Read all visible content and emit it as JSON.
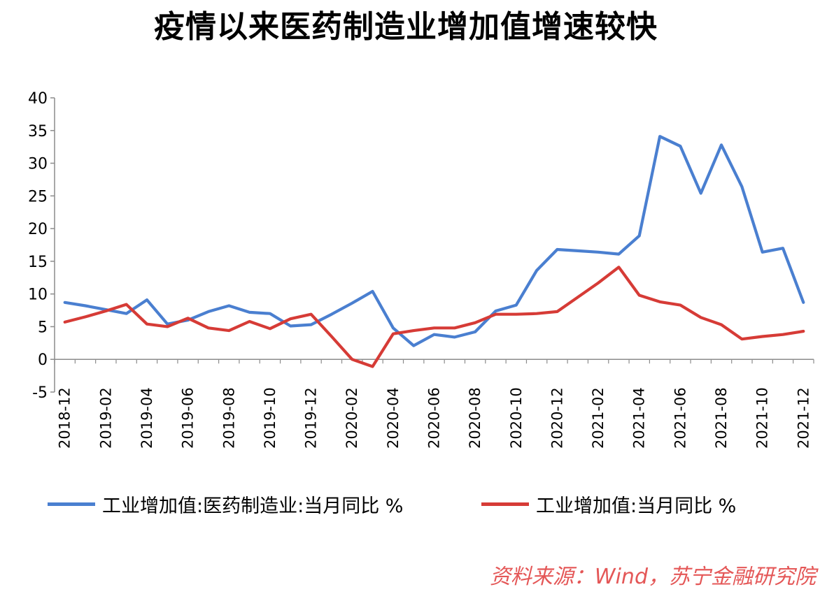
{
  "title": "疫情以来医药制造业增加值增速较快",
  "source": "资料来源：Wind，苏宁金融研究院",
  "colors": {
    "pharma": "#4a7fd0",
    "industry": "#d63b36",
    "axis": "#8c8c8c"
  },
  "chart_data": {
    "type": "line",
    "title": "疫情以来医药制造业增加值增速较快",
    "xlabel": "",
    "ylabel": "",
    "ylim": [
      -5,
      40
    ],
    "yticks": [
      "40",
      "35",
      "30",
      "25",
      "20",
      "15",
      "10",
      "5",
      "0",
      "-5"
    ],
    "xtick_labels": [
      "2018-12",
      "2019-02",
      "2019-04",
      "2019-06",
      "2019-08",
      "2019-10",
      "2019-12",
      "2020-02",
      "2020-04",
      "2020-06",
      "2020-08",
      "2020-10",
      "2020-12",
      "2021-02",
      "2021-04",
      "2021-06",
      "2021-08",
      "2021-10",
      "2021-12"
    ],
    "x": [
      "2018-12",
      "2019-01",
      "2019-02",
      "2019-03",
      "2019-04",
      "2019-05",
      "2019-06",
      "2019-07",
      "2019-08",
      "2019-09",
      "2019-10",
      "2019-11",
      "2019-12",
      "2020-01",
      "2020-02",
      "2020-03",
      "2020-04",
      "2020-05",
      "2020-06",
      "2020-07",
      "2020-08",
      "2020-09",
      "2020-10",
      "2020-11",
      "2020-12",
      "2021-01",
      "2021-02",
      "2021-03",
      "2021-04",
      "2021-05",
      "2021-06",
      "2021-07",
      "2021-08",
      "2021-09",
      "2021-10",
      "2021-11",
      "2021-12"
    ],
    "legend_position": "bottom",
    "grid": false,
    "series": [
      {
        "name": "工业增加值:医药制造业:当月同比 %",
        "color": "#4a7fd0",
        "values": [
          8.7,
          8.2,
          7.6,
          7.0,
          9.1,
          5.4,
          6.0,
          7.3,
          8.2,
          7.2,
          7.0,
          5.1,
          5.3,
          6.9,
          8.6,
          10.4,
          4.8,
          2.1,
          3.8,
          3.4,
          4.2,
          7.4,
          8.3,
          13.6,
          16.8,
          16.6,
          16.4,
          16.1,
          18.9,
          34.1,
          32.6,
          25.4,
          32.8,
          26.4,
          16.4,
          17.0,
          8.7
        ]
      },
      {
        "name": "工业增加值:当月同比 %",
        "color": "#d63b36",
        "values": [
          5.7,
          6.5,
          7.4,
          8.4,
          5.4,
          5.0,
          6.3,
          4.8,
          4.4,
          5.8,
          4.7,
          6.2,
          6.9,
          3.5,
          0.0,
          -1.1,
          3.9,
          4.4,
          4.8,
          4.8,
          5.6,
          6.9,
          6.9,
          7.0,
          7.3,
          9.5,
          11.7,
          14.1,
          9.8,
          8.8,
          8.3,
          6.4,
          5.3,
          3.1,
          3.5,
          3.8,
          4.3
        ]
      }
    ]
  }
}
